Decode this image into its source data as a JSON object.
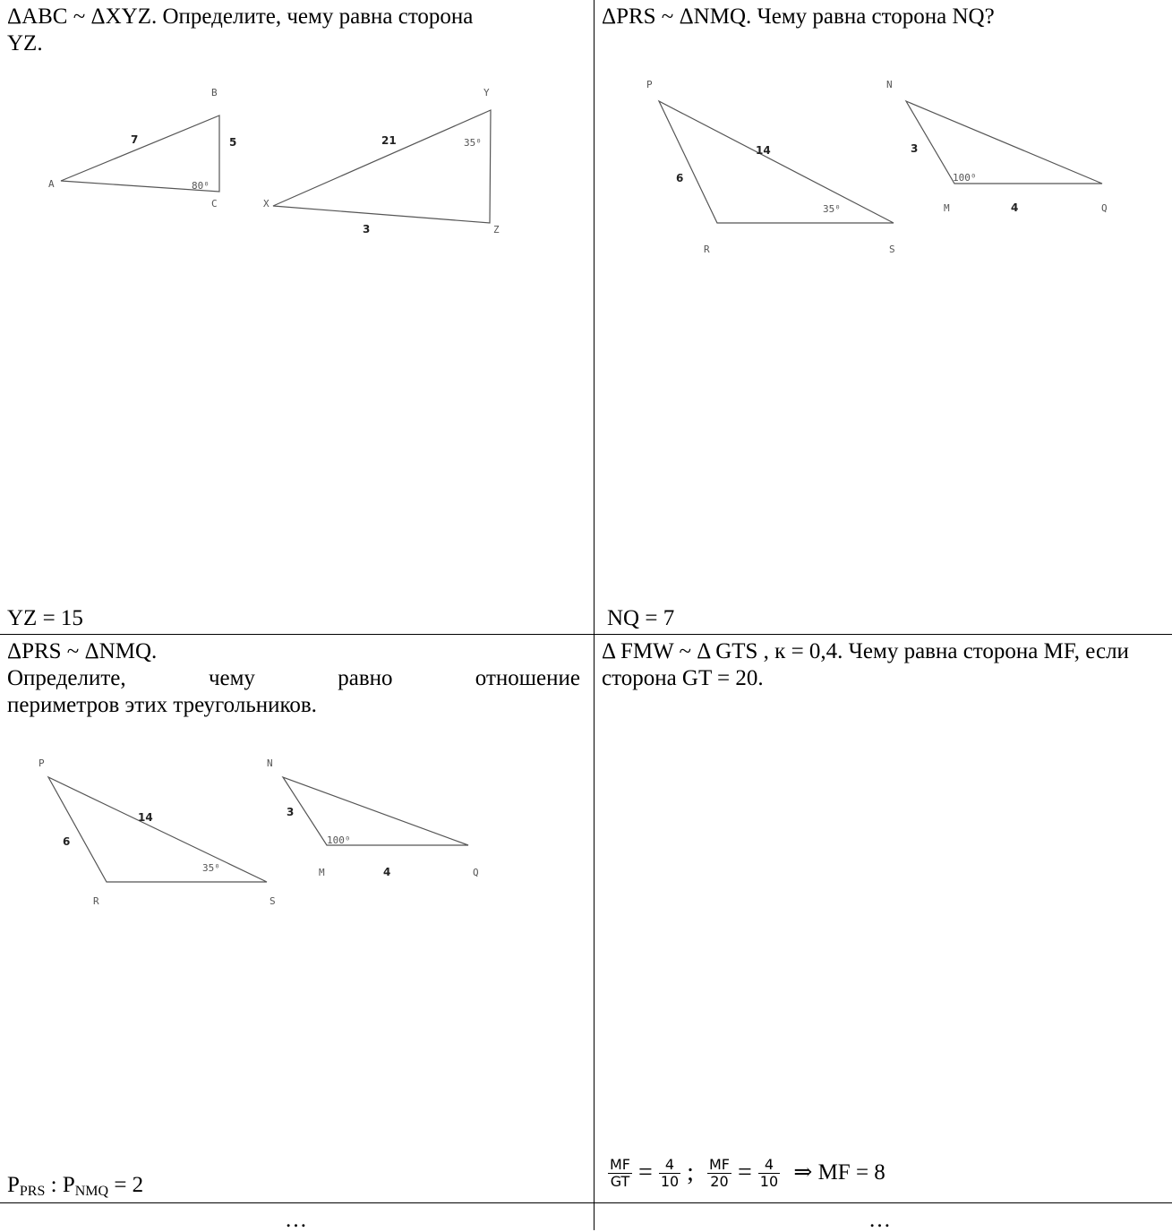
{
  "cells": {
    "c1": {
      "question": "ΔABC ~ ΔXYZ. Определите, чему равна сторона YZ.",
      "answer": "YZ = 15",
      "figure": {
        "labels": {
          "A": "A",
          "B": "B",
          "C": "C",
          "X": "X",
          "Y": "Y",
          "Z": "Z"
        },
        "side_AB": "7",
        "side_BC": "5",
        "angle_C": "80⁰",
        "side_XY": "21",
        "side_XZ": "3",
        "angle_Y": "35⁰"
      }
    },
    "c2": {
      "question": "ΔPRS ~ ΔNMQ. Чему равна сторона NQ?",
      "answer": "NQ = 7",
      "figure": {
        "labels": {
          "P": "P",
          "R": "R",
          "S": "S",
          "N": "N",
          "M": "M",
          "Q": "Q"
        },
        "side_PS": "14",
        "side_PR": "6",
        "angle_S": "35⁰",
        "side_NM": "3",
        "side_MQ": "4",
        "angle_M": "100⁰"
      }
    },
    "c3": {
      "question_line1": "ΔPRS ~ ΔNMQ.",
      "question_line2_words": [
        "Определите,",
        "чему",
        "равно",
        "отношение"
      ],
      "question_line3": "периметров этих треугольников.",
      "answer_P1": "P",
      "answer_sub1": "PRS",
      "answer_sep": " : ",
      "answer_P2": "P",
      "answer_sub2": "NMQ",
      "answer_val": " = 2",
      "figure": {
        "labels": {
          "P": "P",
          "R": "R",
          "S": "S",
          "N": "N",
          "M": "M",
          "Q": "Q"
        },
        "side_PS": "14",
        "side_PR": "6",
        "angle_S": "35⁰",
        "side_NM": "3",
        "side_MQ": "4",
        "angle_M": "100⁰"
      }
    },
    "c4": {
      "question": "Δ FMW ~ Δ GTS , к = 0,4. Чему равна сторона MF, если сторона GT = 20.",
      "answer": {
        "f1_top": "MF",
        "f1_bot": "GT",
        "eq1": "=",
        "f2_top": "4",
        "f2_bot": "10",
        "semi": ";",
        "f3_top": "MF",
        "f3_bot": "20",
        "eq2": "=",
        "f4_top": "4",
        "f4_bot": "10",
        "result": "⇒ MF = 8"
      }
    }
  },
  "footer": {
    "left": "…",
    "right": "…"
  }
}
